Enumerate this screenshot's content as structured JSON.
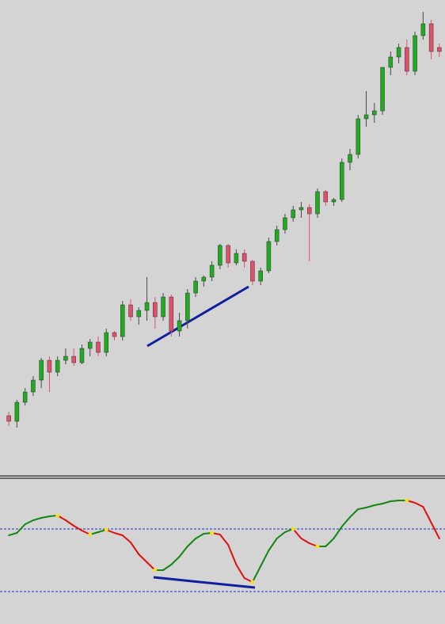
{
  "chart_data": [
    {
      "type": "candlestick",
      "up_color": "#1faa1f",
      "down_color": "#e0506a",
      "wick_color": "#4a4a4a",
      "ylim": [
        0,
        600
      ],
      "ohlc": [
        [
          75,
          80,
          62,
          68
        ],
        [
          68,
          95,
          60,
          92
        ],
        [
          92,
          110,
          88,
          105
        ],
        [
          105,
          125,
          100,
          120
        ],
        [
          120,
          148,
          110,
          145
        ],
        [
          145,
          150,
          105,
          130
        ],
        [
          130,
          150,
          125,
          145
        ],
        [
          145,
          160,
          140,
          150
        ],
        [
          150,
          160,
          138,
          142
        ],
        [
          142,
          165,
          140,
          160
        ],
        [
          160,
          172,
          150,
          168
        ],
        [
          168,
          175,
          150,
          155
        ],
        [
          155,
          185,
          150,
          180
        ],
        [
          180,
          182,
          170,
          175
        ],
        [
          175,
          220,
          170,
          215
        ],
        [
          215,
          222,
          195,
          200
        ],
        [
          200,
          212,
          190,
          208
        ],
        [
          208,
          250,
          195,
          218
        ],
        [
          218,
          225,
          185,
          200
        ],
        [
          200,
          230,
          195,
          225
        ],
        [
          225,
          228,
          175,
          182
        ],
        [
          182,
          205,
          175,
          195
        ],
        [
          195,
          235,
          185,
          230
        ],
        [
          230,
          250,
          225,
          245
        ],
        [
          245,
          252,
          238,
          250
        ],
        [
          250,
          270,
          245,
          265
        ],
        [
          265,
          292,
          260,
          290
        ],
        [
          290,
          292,
          262,
          268
        ],
        [
          268,
          285,
          265,
          280
        ],
        [
          280,
          285,
          262,
          270
        ],
        [
          270,
          272,
          240,
          245
        ],
        [
          245,
          262,
          240,
          258
        ],
        [
          258,
          300,
          255,
          295
        ],
        [
          295,
          315,
          290,
          310
        ],
        [
          310,
          330,
          305,
          325
        ],
        [
          325,
          340,
          320,
          335
        ],
        [
          335,
          345,
          325,
          338
        ],
        [
          338,
          342,
          270,
          330
        ],
        [
          330,
          362,
          325,
          358
        ],
        [
          358,
          360,
          340,
          345
        ],
        [
          345,
          350,
          340,
          348
        ],
        [
          348,
          400,
          345,
          395
        ],
        [
          395,
          412,
          385,
          405
        ],
        [
          405,
          455,
          400,
          450
        ],
        [
          450,
          485,
          440,
          455
        ],
        [
          455,
          470,
          445,
          460
        ],
        [
          460,
          515,
          455,
          515
        ],
        [
          515,
          535,
          505,
          528
        ],
        [
          528,
          545,
          520,
          540
        ],
        [
          540,
          550,
          505,
          510
        ],
        [
          510,
          560,
          505,
          555
        ],
        [
          555,
          585,
          550,
          570
        ],
        [
          570,
          575,
          525,
          535
        ],
        [
          540,
          545,
          528,
          535
        ]
      ]
    },
    {
      "type": "line",
      "up_color": "#118811",
      "down_color": "#e01010",
      "turn_color": "#f5e020",
      "ylim": [
        0,
        183
      ],
      "levels": [
        120,
        41
      ],
      "level_color": "#2030d0",
      "values": [
        112,
        115,
        126,
        131,
        134,
        136,
        137,
        131,
        124,
        118,
        113,
        116,
        119,
        115,
        112,
        103,
        88,
        78,
        68,
        68,
        75,
        85,
        98,
        108,
        114,
        115,
        113,
        100,
        75,
        58,
        53,
        73,
        93,
        108,
        116,
        120,
        108,
        102,
        98,
        98,
        108,
        123,
        135,
        145,
        147,
        150,
        152,
        155,
        156,
        156,
        153,
        148,
        128,
        108
      ]
    }
  ]
}
